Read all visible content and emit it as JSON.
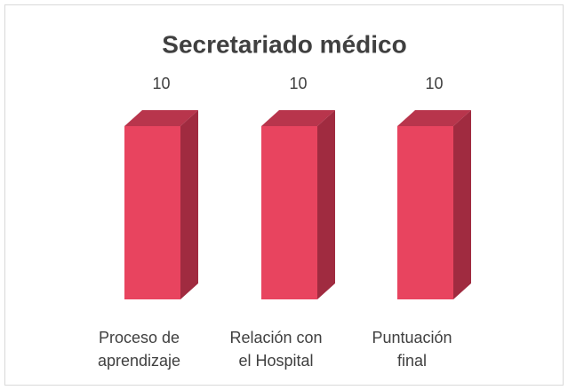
{
  "chart_data": {
    "type": "bar3d",
    "title": "Secretariado médico",
    "categories": [
      "Proceso de aprendizaje",
      "Relación con el Hospital",
      "Puntuación final"
    ],
    "values": [
      10,
      10,
      10
    ],
    "color": "#e8445f",
    "data_labels": true
  }
}
